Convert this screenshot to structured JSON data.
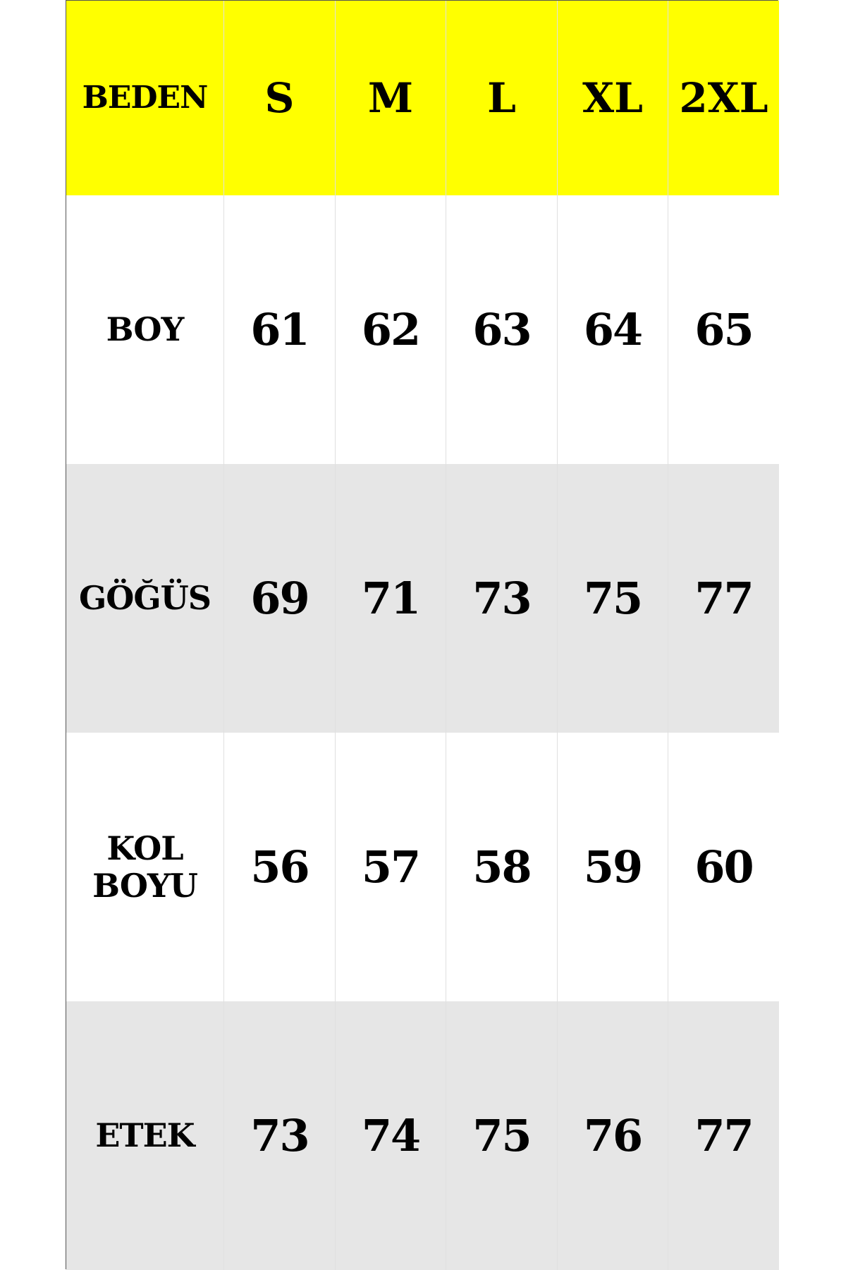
{
  "colors": {
    "header_bg": "#ffff00",
    "alt_row_bg": "#e6e6e6",
    "row_bg": "#ffffff"
  },
  "header": {
    "label": "BEDEN",
    "sizes": [
      "S",
      "M",
      "L",
      "XL",
      "2XL"
    ]
  },
  "rows": [
    {
      "label": "BOY",
      "values": [
        "61",
        "62",
        "63",
        "64",
        "65"
      ]
    },
    {
      "label": "GÖĞÜS",
      "values": [
        "69",
        "71",
        "73",
        "75",
        "77"
      ]
    },
    {
      "label": "KOL BOYU",
      "values": [
        "56",
        "57",
        "58",
        "59",
        "60"
      ]
    },
    {
      "label": "ETEK",
      "values": [
        "73",
        "74",
        "75",
        "76",
        "77"
      ]
    }
  ]
}
